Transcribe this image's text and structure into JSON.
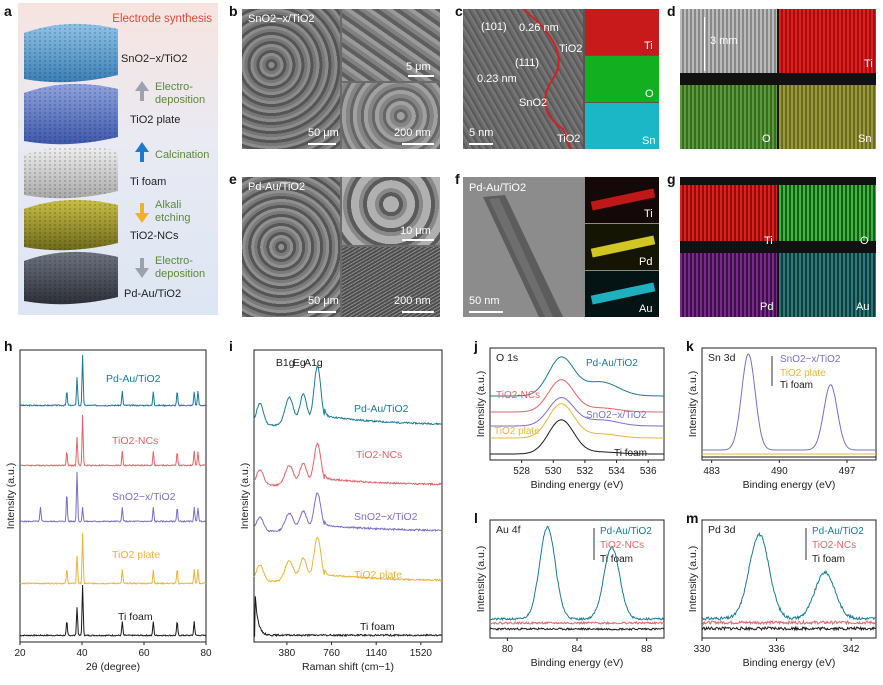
{
  "panel_letters": [
    "a",
    "b",
    "c",
    "d",
    "e",
    "f",
    "g",
    "h",
    "i",
    "j",
    "k",
    "l",
    "m"
  ],
  "a": {
    "title": "Electrode synthesis",
    "stages": [
      "SnO2−x/TiO2",
      "TiO2 plate",
      "Ti foam",
      "TiO2-NCs",
      "Pd-Au/TiO2"
    ],
    "steps": [
      "Electro-deposition",
      "Calcination",
      "Alkali etching",
      "Electro-deposition"
    ]
  },
  "b": {
    "label": "SnO2−x/TiO2",
    "scale_left": "50 μm",
    "scale_tr": "5 μm",
    "scale_br": "200 nm"
  },
  "c": {
    "labels": [
      "(101)",
      "0.26 nm",
      "TiO2",
      "(111)",
      "0.23 nm",
      "SnO2",
      "TiO2"
    ],
    "scale": "5 nm",
    "maps": [
      "Ti",
      "O",
      "Sn"
    ]
  },
  "d": {
    "length": "3 mm",
    "maps": [
      "Ti",
      "O",
      "Sn"
    ]
  },
  "e": {
    "label": "Pd-Au/TiO2",
    "scale_left": "50 μm",
    "scale_tr": "10 μm",
    "scale_br": "200 nm"
  },
  "f": {
    "label": "Pd-Au/TiO2",
    "scale": "50 nm",
    "maps": [
      "Ti",
      "Pd",
      "Au"
    ]
  },
  "g": {
    "maps": [
      "Ti",
      "O",
      "Pd",
      "Au"
    ]
  },
  "colors": {
    "pdau": "#1a7a96",
    "ncs": "#e0646a",
    "sno": "#7a6fc8",
    "plate": "#e8b43a",
    "foam": "#1a1a1a",
    "arrow_gray": "#9aa2ab",
    "arrow_blue": "#1f78c8",
    "arrow_yellow": "#f2b024",
    "step_green": "#5a8a3a",
    "title_red": "#d94b3a"
  },
  "chart_data": [
    {
      "panel": "h",
      "type": "line",
      "xlabel": "2θ (degree)",
      "ylabel": "Intensity (a.u.)",
      "xlim": [
        20,
        80
      ],
      "xticks": [
        20,
        40,
        60,
        80
      ],
      "series": [
        {
          "name": "Pd-Au/TiO2",
          "peaks": [
            35.1,
            38.4,
            40.2,
            53.0,
            63.0,
            70.7,
            76.2,
            77.4
          ]
        },
        {
          "name": "TiO2-NCs",
          "peaks": [
            35.1,
            38.4,
            40.2,
            53.0,
            63.0,
            70.7,
            76.2,
            77.4
          ]
        },
        {
          "name": "SnO2−x/TiO2",
          "peaks": [
            26.6,
            35.1,
            38.4,
            40.2,
            53.0,
            63.0,
            70.7,
            76.2,
            77.4
          ]
        },
        {
          "name": "TiO2 plate",
          "peaks": [
            35.1,
            38.4,
            40.2,
            53.0,
            63.0,
            70.7,
            76.2,
            77.4
          ]
        },
        {
          "name": "Ti foam",
          "peaks": [
            35.1,
            38.4,
            40.2,
            53.0,
            63.0,
            70.7,
            76.2
          ]
        }
      ]
    },
    {
      "panel": "i",
      "type": "line",
      "xlabel": "Raman shift (cm−1)",
      "ylabel": "Intensity (a.u.)",
      "xlim": [
        100,
        1700
      ],
      "xticks": [
        380,
        760,
        1140,
        1520
      ],
      "peak_labels": [
        "B1g",
        "Eg",
        "A1g"
      ],
      "peaks": [
        440,
        470,
        610
      ],
      "series": [
        {
          "name": "Pd-Au/TiO2"
        },
        {
          "name": "TiO2-NCs"
        },
        {
          "name": "SnO2−x/TiO2"
        },
        {
          "name": "TiO2 plate"
        },
        {
          "name": "Ti foam"
        }
      ]
    },
    {
      "panel": "j",
      "type": "line",
      "title": "O 1s",
      "xlabel": "Binding energy (eV)",
      "ylabel": "Intensity (a.u.)",
      "xlim": [
        526,
        537
      ],
      "xticks": [
        528,
        530,
        532,
        534,
        536
      ],
      "series": [
        {
          "name": "Pd-Au/TiO2"
        },
        {
          "name": "TiO2-NCs"
        },
        {
          "name": "SnO2−x/TiO2"
        },
        {
          "name": "TiO2 plate"
        },
        {
          "name": "Ti foam"
        }
      ]
    },
    {
      "panel": "k",
      "type": "line",
      "title": "Sn 3d",
      "xlabel": "Binding energy (eV)",
      "ylabel": "Intensity (a.u.)",
      "xlim": [
        482,
        500
      ],
      "xticks": [
        483,
        490,
        497
      ],
      "peaks": [
        486.8,
        495.3
      ],
      "series": [
        {
          "name": "SnO2−x/TiO2"
        },
        {
          "name": "TiO2 plate"
        },
        {
          "name": "Ti foam"
        }
      ]
    },
    {
      "panel": "l",
      "type": "line",
      "title": "Au 4f",
      "xlabel": "Binding energy (eV)",
      "ylabel": "Intensity (a.u.)",
      "xlim": [
        79,
        89
      ],
      "xticks": [
        80,
        84,
        88
      ],
      "peaks": [
        82.3,
        86.0
      ],
      "series": [
        {
          "name": "Pd-Au/TiO2"
        },
        {
          "name": "TiO2-NCs"
        },
        {
          "name": "Ti foam"
        }
      ]
    },
    {
      "panel": "m",
      "type": "line",
      "title": "Pd 3d",
      "xlabel": "Binding energy (eV)",
      "ylabel": "Intensity (a.u.)",
      "xlim": [
        330,
        344
      ],
      "xticks": [
        330,
        336,
        342
      ],
      "peaks": [
        334.6,
        339.9
      ],
      "series": [
        {
          "name": "Pd-Au/TiO2"
        },
        {
          "name": "TiO2-NCs"
        },
        {
          "name": "Ti foam"
        }
      ]
    }
  ]
}
